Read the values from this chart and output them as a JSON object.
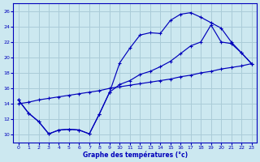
{
  "bg_color": "#cce8f0",
  "grid_color": "#aaccd8",
  "line_color": "#0000bb",
  "xlabel": "Graphe des températures (°c)",
  "xlim": [
    -0.5,
    23.5
  ],
  "ylim": [
    9.0,
    27.0
  ],
  "yticks": [
    10,
    12,
    14,
    16,
    18,
    20,
    22,
    24,
    26
  ],
  "xticks": [
    0,
    1,
    2,
    3,
    4,
    5,
    6,
    7,
    8,
    9,
    10,
    11,
    12,
    13,
    14,
    15,
    16,
    17,
    18,
    19,
    20,
    21,
    22,
    23
  ],
  "curve1_x": [
    0,
    1,
    2,
    3,
    4,
    5,
    6,
    7,
    8,
    9,
    10,
    11,
    12,
    13,
    14,
    15,
    16,
    17,
    18,
    19,
    20,
    21,
    22,
    23
  ],
  "curve1_y": [
    14.5,
    12.8,
    11.7,
    10.1,
    10.6,
    10.7,
    10.6,
    10.1,
    12.7,
    15.5,
    19.3,
    21.2,
    22.9,
    23.2,
    23.1,
    24.8,
    25.6,
    25.8,
    25.2,
    24.5,
    23.8,
    22.0,
    20.6,
    19.2
  ],
  "curve2_x": [
    0,
    1,
    2,
    3,
    4,
    5,
    6,
    7,
    8,
    9,
    10,
    11,
    12,
    13,
    14,
    15,
    16,
    17,
    18,
    19,
    20,
    21,
    22,
    23
  ],
  "curve2_y": [
    14.5,
    12.8,
    11.7,
    10.1,
    10.6,
    10.7,
    10.6,
    10.1,
    12.7,
    15.5,
    16.5,
    17.0,
    17.8,
    18.2,
    18.8,
    19.5,
    20.5,
    21.5,
    22.0,
    24.2,
    22.0,
    21.8,
    20.6,
    19.2
  ],
  "curve3_x": [
    0,
    1,
    2,
    3,
    4,
    5,
    6,
    7,
    8,
    9,
    10,
    11,
    12,
    13,
    14,
    15,
    16,
    17,
    18,
    19,
    20,
    21,
    22,
    23
  ],
  "curve3_y": [
    14.0,
    14.2,
    14.5,
    14.7,
    14.9,
    15.1,
    15.3,
    15.5,
    15.7,
    16.0,
    16.2,
    16.4,
    16.6,
    16.8,
    17.0,
    17.2,
    17.5,
    17.7,
    18.0,
    18.2,
    18.5,
    18.7,
    18.9,
    19.2
  ]
}
